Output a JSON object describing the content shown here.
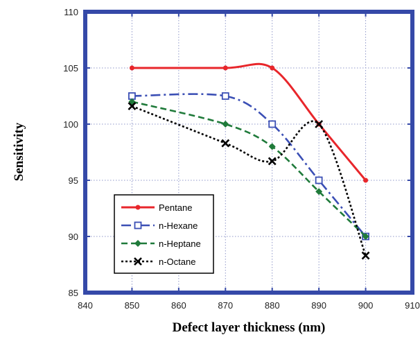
{
  "chart_data": {
    "type": "line",
    "title": "",
    "xlabel": "Defect layer thickness (nm)",
    "ylabel": "Sensitivity",
    "xlim": [
      840,
      910
    ],
    "ylim": [
      85,
      110
    ],
    "xticks": [
      "840",
      "850",
      "860",
      "870",
      "880",
      "890",
      "900",
      "910"
    ],
    "yticks": [
      "85",
      "90",
      "95",
      "100",
      "105",
      "110"
    ],
    "grid": true,
    "legend_position": "bottom-left",
    "series": [
      {
        "name": "Pentane",
        "color": "#e8262b",
        "line_style": "solid",
        "marker": "filled-circle",
        "x": [
          850,
          870,
          880,
          890,
          900
        ],
        "y": [
          105,
          105,
          105,
          100,
          95
        ]
      },
      {
        "name": "n-Hexane",
        "color": "#3b4fb5",
        "line_style": "dash-dot",
        "marker": "open-square",
        "x": [
          850,
          870,
          880,
          890,
          900
        ],
        "y": [
          102.5,
          102.5,
          100,
          95,
          90
        ]
      },
      {
        "name": "n-Heptane",
        "color": "#1f7a3a",
        "line_style": "dashed",
        "marker": "filled-diamond",
        "x": [
          850,
          870,
          880,
          890,
          900
        ],
        "y": [
          102,
          100,
          98,
          94,
          90
        ]
      },
      {
        "name": "n-Octane",
        "color": "#000000",
        "line_style": "dotted",
        "marker": "x",
        "x": [
          850,
          870,
          880,
          890,
          900
        ],
        "y": [
          101.6,
          98.3,
          96.7,
          100,
          88.3
        ]
      }
    ]
  }
}
